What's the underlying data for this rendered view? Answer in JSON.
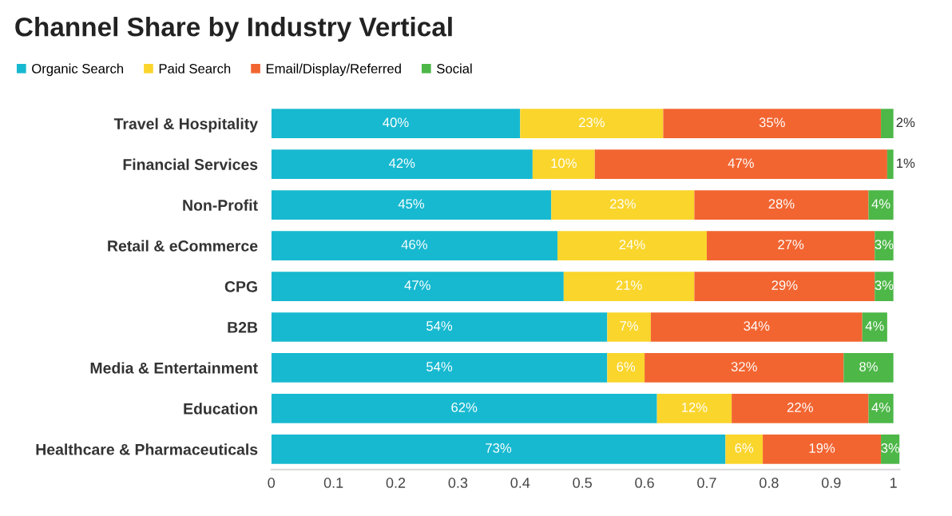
{
  "chart_data": {
    "type": "bar",
    "orientation": "horizontal",
    "stacked": true,
    "title": "Channel Share by Industry Vertical",
    "categories": [
      "Travel & Hospitality",
      "Financial Services",
      "Non-Profit",
      "Retail & eCommerce",
      "CPG",
      "B2B",
      "Media & Entertainment",
      "Education",
      "Healthcare & Pharmaceuticals"
    ],
    "series": [
      {
        "name": "Organic Search",
        "color": "#17b9d0",
        "values": [
          0.4,
          0.42,
          0.45,
          0.46,
          0.47,
          0.54,
          0.54,
          0.62,
          0.73
        ],
        "value_labels": [
          "40%",
          "42%",
          "45%",
          "46%",
          "47%",
          "54%",
          "54%",
          "62%",
          "73%"
        ]
      },
      {
        "name": "Paid Search",
        "color": "#fad52c",
        "values": [
          0.23,
          0.1,
          0.23,
          0.24,
          0.21,
          0.07,
          0.06,
          0.12,
          0.06
        ],
        "value_labels": [
          "23%",
          "10%",
          "23%",
          "24%",
          "21%",
          "7%",
          "6%",
          "12%",
          "6%"
        ]
      },
      {
        "name": "Email/Display/Referred",
        "color": "#f26531",
        "values": [
          0.35,
          0.47,
          0.28,
          0.27,
          0.29,
          0.34,
          0.32,
          0.22,
          0.19
        ],
        "value_labels": [
          "35%",
          "47%",
          "28%",
          "27%",
          "29%",
          "34%",
          "32%",
          "22%",
          "19%"
        ]
      },
      {
        "name": "Social",
        "color": "#4db748",
        "values": [
          0.02,
          0.01,
          0.04,
          0.03,
          0.03,
          0.04,
          0.08,
          0.04,
          0.03
        ],
        "value_labels": [
          "2%",
          "1%",
          "4%",
          "3%",
          "3%",
          "4%",
          "8%",
          "4%",
          "3%"
        ]
      }
    ],
    "xlim": [
      0,
      1.01
    ],
    "xticks": [
      0,
      0.1,
      0.2,
      0.3,
      0.4,
      0.5,
      0.6,
      0.7,
      0.8,
      0.9,
      1
    ],
    "grid": false,
    "legend": "top left"
  }
}
